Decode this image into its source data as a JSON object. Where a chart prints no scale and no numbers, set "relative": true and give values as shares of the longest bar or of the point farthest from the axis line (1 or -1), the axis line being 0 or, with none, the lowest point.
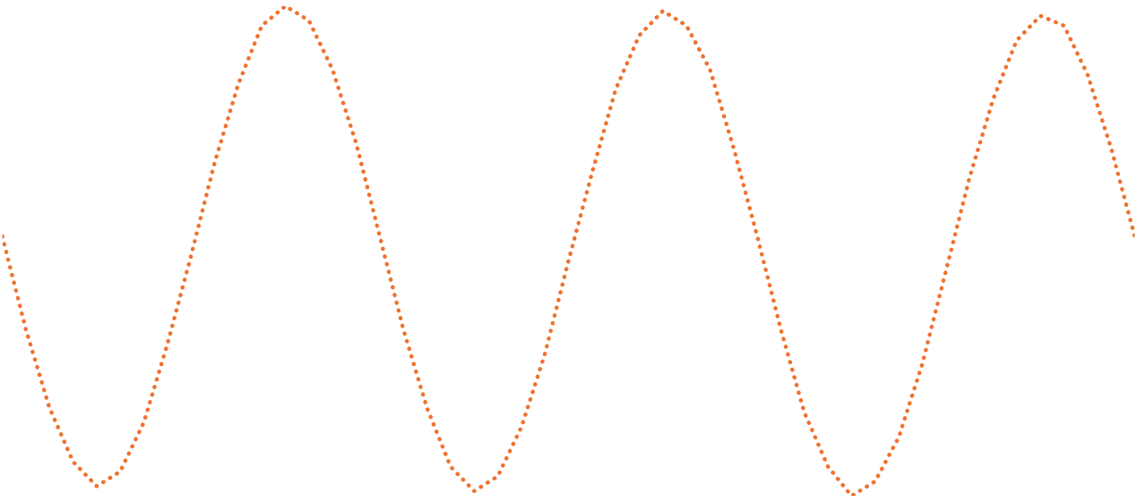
{
  "chart_data": {
    "type": "line",
    "relative": true,
    "line_style": "dotted",
    "marker": "none",
    "legend": false,
    "tick_labels": false,
    "categories": [
      null,
      null,
      null,
      null,
      null,
      null,
      null,
      null,
      null,
      null,
      null,
      null,
      null,
      null,
      null,
      null,
      null,
      null,
      null,
      null,
      null,
      null,
      null,
      null,
      null,
      null,
      null,
      null,
      null,
      null,
      null,
      null,
      null,
      null,
      null,
      null,
      null,
      null,
      null,
      null,
      null,
      null,
      null,
      null,
      null,
      null,
      null,
      null,
      null
    ],
    "series": [
      {
        "color": "#ef7230",
        "values": [
          0.53,
          0.34,
          0.18,
          0.07,
          0.02,
          0.05,
          0.15,
          0.31,
          0.49,
          0.68,
          0.84,
          0.96,
          1.0,
          0.97,
          0.87,
          0.72,
          0.53,
          0.34,
          0.18,
          0.06,
          0.01,
          0.04,
          0.14,
          0.29,
          0.48,
          0.66,
          0.83,
          0.94,
          0.99,
          0.96,
          0.87,
          0.71,
          0.53,
          0.34,
          0.17,
          0.06,
          0.0,
          0.03,
          0.12,
          0.27,
          0.46,
          0.65,
          0.81,
          0.93,
          0.98,
          0.96,
          0.86,
          0.71,
          0.53
        ]
      }
    ]
  }
}
